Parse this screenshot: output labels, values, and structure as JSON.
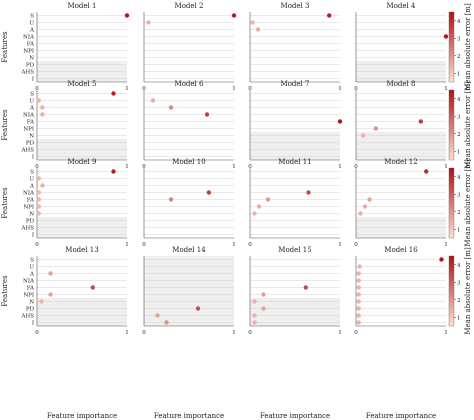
{
  "chart_data": {
    "type": "scatter",
    "features": [
      "S",
      "U",
      "A",
      "NIA",
      "FA",
      "NPI",
      "N",
      "PD",
      "AHS",
      "I"
    ],
    "xlabel": "Feature importance",
    "ylabel": "Features",
    "x_ticks": [
      "0",
      "1"
    ],
    "xlim": [
      0,
      1
    ],
    "colorbar": {
      "label": "Mean absolute error [m]",
      "ticks": [
        "1",
        "2",
        "3",
        "4"
      ],
      "range": [
        0.5,
        4.5
      ],
      "low_color": "#fde0cf",
      "high_color": "#b40f16"
    },
    "panels": [
      {
        "title": "Model 1",
        "shaded_from": "PD",
        "points": [
          {
            "f": "S",
            "x": 1.0,
            "c": 4.4
          }
        ]
      },
      {
        "title": "Model 2",
        "shaded_from": "",
        "points": [
          {
            "f": "S",
            "x": 1.0,
            "c": 4.3
          },
          {
            "f": "U",
            "x": 0.05,
            "c": 1.4
          }
        ]
      },
      {
        "title": "Model 3",
        "shaded_from": "",
        "points": [
          {
            "f": "S",
            "x": 0.88,
            "c": 4.2
          },
          {
            "f": "U",
            "x": 0.03,
            "c": 1.3
          },
          {
            "f": "A",
            "x": 0.09,
            "c": 1.5
          }
        ]
      },
      {
        "title": "Model 4",
        "shaded_from": "PD",
        "points": [
          {
            "f": "NIA",
            "x": 1.0,
            "c": 4.4
          }
        ]
      },
      {
        "title": "Model 5",
        "shaded_from": "PD",
        "points": [
          {
            "f": "S",
            "x": 0.85,
            "c": 4.2
          },
          {
            "f": "U",
            "x": 0.02,
            "c": 1.3
          },
          {
            "f": "A",
            "x": 0.06,
            "c": 1.4
          },
          {
            "f": "NIA",
            "x": 0.06,
            "c": 1.4
          }
        ]
      },
      {
        "title": "Model 6",
        "shaded_from": "",
        "points": [
          {
            "f": "U",
            "x": 0.1,
            "c": 1.5
          },
          {
            "f": "A",
            "x": 0.3,
            "c": 2.2
          },
          {
            "f": "NIA",
            "x": 0.7,
            "c": 3.6
          }
        ]
      },
      {
        "title": "Model 7",
        "shaded_from": "N",
        "points": [
          {
            "f": "FA",
            "x": 1.0,
            "c": 4.4
          }
        ]
      },
      {
        "title": "Model 8",
        "shaded_from": "N",
        "points": [
          {
            "f": "FA",
            "x": 0.72,
            "c": 3.7
          },
          {
            "f": "NPI",
            "x": 0.22,
            "c": 2.0
          },
          {
            "f": "N",
            "x": 0.08,
            "c": 1.4
          }
        ]
      },
      {
        "title": "Model 9",
        "shaded_from": "PD",
        "points": [
          {
            "f": "S",
            "x": 0.85,
            "c": 4.2
          },
          {
            "f": "U",
            "x": 0.02,
            "c": 1.3
          },
          {
            "f": "A",
            "x": 0.06,
            "c": 1.4
          },
          {
            "f": "NIA",
            "x": 0.02,
            "c": 1.3
          },
          {
            "f": "FA",
            "x": 0.02,
            "c": 1.3
          },
          {
            "f": "NPI",
            "x": 0.02,
            "c": 1.3
          },
          {
            "f": "N",
            "x": 0.02,
            "c": 1.3
          }
        ]
      },
      {
        "title": "Model 10",
        "shaded_from": "",
        "points": [
          {
            "f": "NIA",
            "x": 0.72,
            "c": 3.7
          },
          {
            "f": "FA",
            "x": 0.3,
            "c": 2.3
          }
        ]
      },
      {
        "title": "Model 11",
        "shaded_from": "",
        "points": [
          {
            "f": "NIA",
            "x": 0.65,
            "c": 3.5
          },
          {
            "f": "FA",
            "x": 0.2,
            "c": 1.9
          },
          {
            "f": "NPI",
            "x": 0.1,
            "c": 1.5
          },
          {
            "f": "N",
            "x": 0.05,
            "c": 1.4
          }
        ]
      },
      {
        "title": "Model 12",
        "shaded_from": "PD",
        "points": [
          {
            "f": "S",
            "x": 0.78,
            "c": 4.0
          },
          {
            "f": "FA",
            "x": 0.15,
            "c": 1.7
          },
          {
            "f": "NPI",
            "x": 0.1,
            "c": 1.5
          },
          {
            "f": "N",
            "x": 0.05,
            "c": 1.4
          }
        ]
      },
      {
        "title": "Model 13",
        "shaded_from": "N",
        "points": [
          {
            "f": "A",
            "x": 0.15,
            "c": 1.7
          },
          {
            "f": "FA",
            "x": 0.62,
            "c": 3.4
          },
          {
            "f": "NPI",
            "x": 0.15,
            "c": 1.7
          },
          {
            "f": "N",
            "x": 0.05,
            "c": 1.4
          }
        ]
      },
      {
        "title": "Model 14",
        "shaded_from": "S",
        "points": [
          {
            "f": "PD",
            "x": 0.6,
            "c": 3.3
          },
          {
            "f": "AHS",
            "x": 0.15,
            "c": 1.7
          },
          {
            "f": "I",
            "x": 0.25,
            "c": 2.0
          }
        ]
      },
      {
        "title": "Model 15",
        "shaded_from": "N",
        "points": [
          {
            "f": "FA",
            "x": 0.62,
            "c": 3.4
          },
          {
            "f": "NPI",
            "x": 0.15,
            "c": 1.7
          },
          {
            "f": "N",
            "x": 0.05,
            "c": 1.4
          },
          {
            "f": "PD",
            "x": 0.15,
            "c": 1.7
          },
          {
            "f": "AHS",
            "x": 0.05,
            "c": 1.4
          },
          {
            "f": "I",
            "x": 0.05,
            "c": 1.4
          }
        ]
      },
      {
        "title": "Model 16",
        "shaded_from": "",
        "points": [
          {
            "f": "S",
            "x": 0.95,
            "c": 4.4
          },
          {
            "f": "U",
            "x": 0.04,
            "c": 1.4
          },
          {
            "f": "A",
            "x": 0.03,
            "c": 1.4
          },
          {
            "f": "NIA",
            "x": 0.03,
            "c": 1.4
          },
          {
            "f": "FA",
            "x": 0.03,
            "c": 1.4
          },
          {
            "f": "NPI",
            "x": 0.03,
            "c": 1.4
          },
          {
            "f": "N",
            "x": 0.03,
            "c": 1.4
          },
          {
            "f": "PD",
            "x": 0.03,
            "c": 1.4
          },
          {
            "f": "AHS",
            "x": 0.03,
            "c": 1.4
          },
          {
            "f": "I",
            "x": 0.03,
            "c": 1.4
          }
        ]
      }
    ]
  }
}
